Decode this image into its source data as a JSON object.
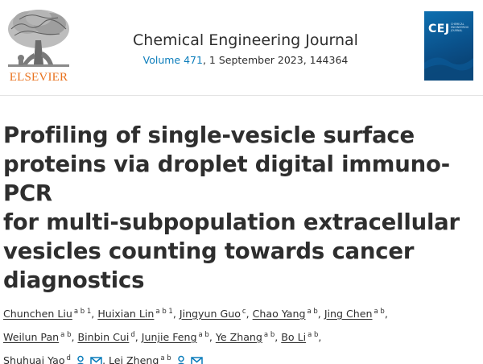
{
  "header": {
    "publisher": "ELSEVIER",
    "journal_title": "Chemical Engineering Journal",
    "volume_link": "Volume 471",
    "issue_info": ", 1 September 2023, 144364",
    "cover_abbr": "CEJ",
    "cover_name": "CHEMICAL ENGINEERING JOURNAL"
  },
  "article": {
    "title_lines": [
      "Profiling of single-vesicle surface",
      "proteins via droplet digital immuno-PCR",
      "for multi-subpopulation extracellular",
      "vesicles counting towards cancer",
      "diagnostics"
    ]
  },
  "authors": [
    {
      "name": "Chunchen Liu",
      "aff": "a b 1"
    },
    {
      "name": "Huixian Lin",
      "aff": "a b 1"
    },
    {
      "name": "Jingyun Guo",
      "aff": "c"
    },
    {
      "name": "Chao Yang",
      "aff": "a b"
    },
    {
      "name": "Jing Chen",
      "aff": "a b"
    },
    {
      "name": "Weilun Pan",
      "aff": "a b"
    },
    {
      "name": "Binbin Cui",
      "aff": "d"
    },
    {
      "name": "Junjie Feng",
      "aff": "a b"
    },
    {
      "name": "Ye Zhang",
      "aff": "a b"
    },
    {
      "name": "Bo Li",
      "aff": "a b"
    },
    {
      "name": "Shuhuai Yao",
      "aff": "d"
    },
    {
      "name": "Lei Zheng",
      "aff": "a b"
    }
  ],
  "icons": {
    "person": "person-icon",
    "mail": "mail-icon",
    "accent_color": "#0c7dbb",
    "publisher_color": "#e9711c"
  }
}
